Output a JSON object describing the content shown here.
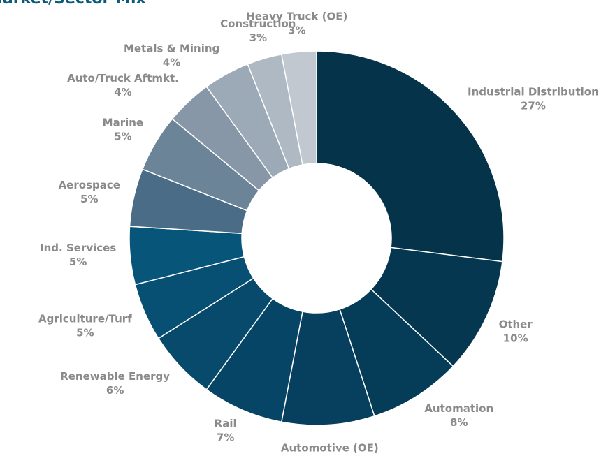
{
  "chart_data": {
    "type": "donut",
    "title": "Market/Sector Mix",
    "categories": [
      "Industrial Distribution",
      "Other",
      "Automation",
      "Automotive (OE)",
      "Rail",
      "Renewable Energy",
      "Agriculture/Turf",
      "Ind. Services",
      "Aerospace",
      "Marine",
      "Auto/Truck Aftmkt.",
      "Metals & Mining",
      "Construction",
      "Heavy Truck (OE)"
    ],
    "values": [
      27,
      10,
      8,
      8,
      7,
      6,
      5,
      5,
      5,
      5,
      4,
      4,
      3,
      3
    ],
    "value_labels": [
      "27%",
      "10%",
      "8%",
      "8%",
      "7%",
      "6%",
      "5%",
      "5%",
      "5%",
      "5%",
      "4%",
      "4%",
      "3%",
      "3%"
    ],
    "colors": [
      "#04334a",
      "#053750",
      "#053c57",
      "#06405e",
      "#064565",
      "#074a6c",
      "#074f73",
      "#08557a",
      "#4b6c86",
      "#6c8497",
      "#8797a7",
      "#9caab7",
      "#afb9c3",
      "#c2c8cf"
    ]
  }
}
